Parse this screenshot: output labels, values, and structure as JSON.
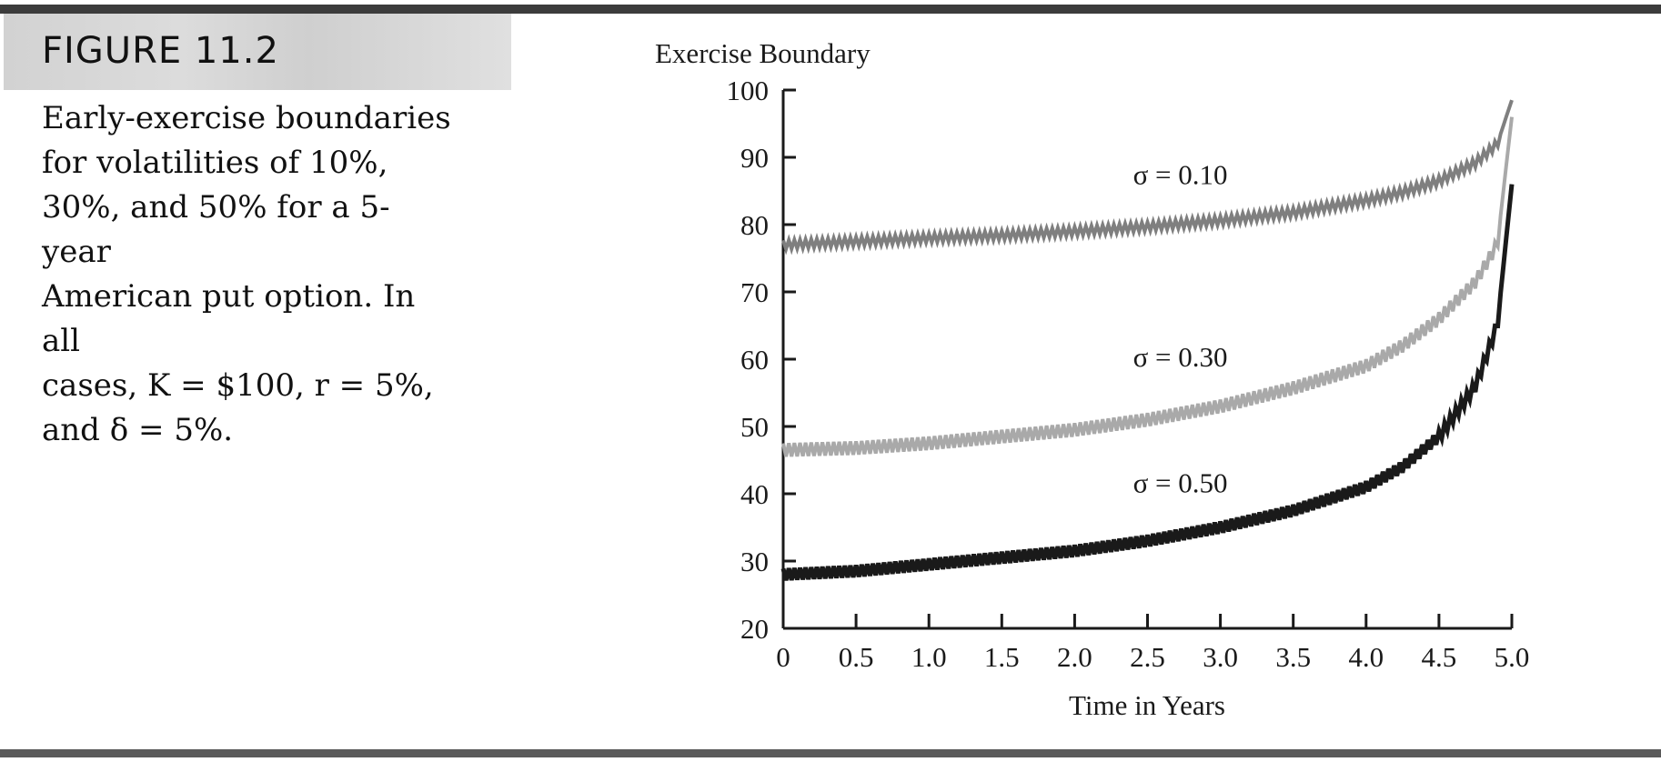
{
  "figure": {
    "label": "FIGURE 11.2",
    "caption_lines": [
      "Early-exercise boundaries",
      "for volatilities of 10%,",
      "30%, and 50% for a 5-year",
      "American put option. In all",
      "cases, K = $100, r = 5%,",
      "and δ = 5%."
    ]
  },
  "chart_data": {
    "type": "line",
    "title": "",
    "ylabel": "Exercise Boundary",
    "xlabel": "Time in Years",
    "xlim": [
      0,
      5
    ],
    "ylim": [
      20,
      100
    ],
    "xticks": [
      "0",
      "0.5",
      "1.0",
      "1.5",
      "2.0",
      "2.5",
      "3.0",
      "3.5",
      "4.0",
      "4.5",
      "5.0"
    ],
    "yticks": [
      "20",
      "30",
      "40",
      "50",
      "60",
      "70",
      "80",
      "90",
      "100"
    ],
    "grid": false,
    "legend": "none (series labeled inline)",
    "x": [
      0,
      0.5,
      1.0,
      1.5,
      2.0,
      2.5,
      3.0,
      3.5,
      4.0,
      4.25,
      4.5,
      4.75,
      4.9,
      5.0
    ],
    "series": [
      {
        "name": "σ = 0.10",
        "color": "#7f7f7f",
        "values": [
          77,
          77.5,
          78,
          78.4,
          79,
          79.7,
          80.6,
          81.8,
          83.6,
          84.8,
          86.5,
          89.2,
          92,
          98.5
        ]
      },
      {
        "name": "σ = 0.30",
        "color": "#a9a9a9",
        "values": [
          46.5,
          46.8,
          47.5,
          48.5,
          49.5,
          51,
          53,
          55.7,
          59,
          62,
          66,
          71.5,
          77,
          96
        ]
      },
      {
        "name": "σ = 0.50",
        "color": "#1a1a1a",
        "values": [
          28,
          28.5,
          29.5,
          30.5,
          31.5,
          33,
          35,
          37.5,
          41,
          44,
          48.5,
          56,
          65,
          86
        ]
      }
    ]
  }
}
